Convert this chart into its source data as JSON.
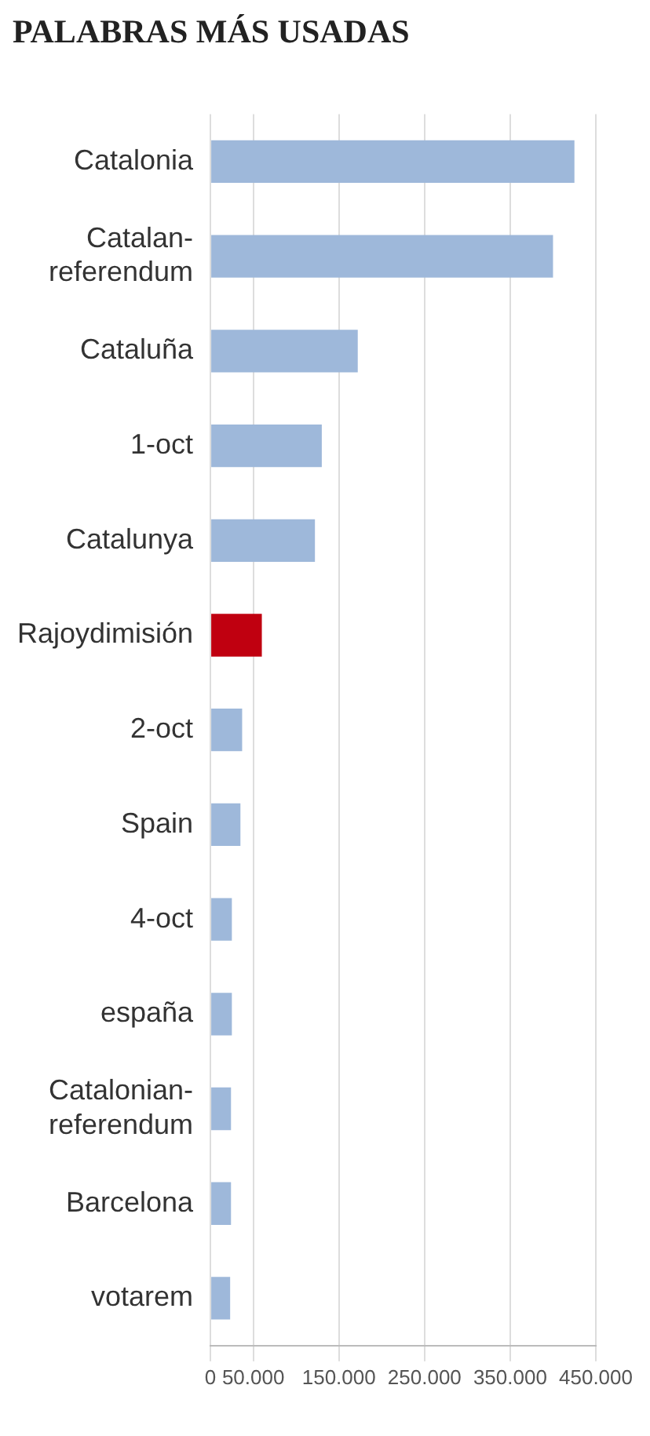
{
  "chart_data": {
    "type": "bar",
    "orientation": "horizontal",
    "title": "PALABRAS MÁS USADAS",
    "categories": [
      "Catalonia",
      "Catalan-referendum",
      "Cataluña",
      "1-oct",
      "Catalunya",
      "Rajoydimisión",
      "2-oct",
      "Spain",
      "4-oct",
      "españa",
      "Catalonian-referendum",
      "Barcelona",
      "votarem"
    ],
    "values": [
      425000,
      400000,
      172000,
      130000,
      122000,
      60000,
      37000,
      35000,
      25000,
      25000,
      24000,
      24000,
      23000
    ],
    "colors": [
      "#9eb8da",
      "#9eb8da",
      "#9eb8da",
      "#9eb8da",
      "#9eb8da",
      "#c00010",
      "#9eb8da",
      "#9eb8da",
      "#9eb8da",
      "#9eb8da",
      "#9eb8da",
      "#9eb8da",
      "#9eb8da"
    ],
    "xlim": [
      0,
      450000
    ],
    "xticks": [
      0,
      {
        "value": 50000,
        "label": "50.000"
      },
      {
        "value": 150000,
        "label": "150.000"
      },
      {
        "value": 250000,
        "label": "250.000"
      },
      {
        "value": 350000,
        "label": "350.000"
      },
      {
        "value": 450000,
        "label": "450.000"
      }
    ],
    "grid": "x"
  }
}
